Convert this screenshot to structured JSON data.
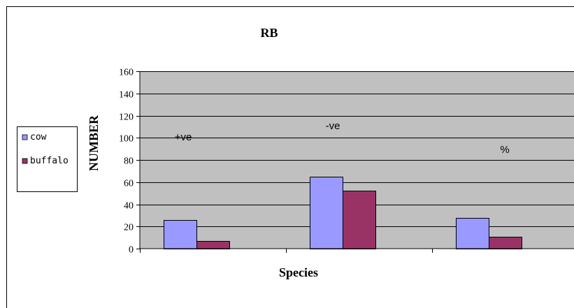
{
  "chart_data": {
    "type": "bar",
    "title": "RB",
    "xlabel": "Species",
    "ylabel": "NUMBER",
    "ylim": [
      0,
      160
    ],
    "yticks": [
      0,
      20,
      40,
      60,
      80,
      100,
      120,
      140,
      160
    ],
    "grid": true,
    "legend_position": "left",
    "categories": [
      "",
      "",
      ""
    ],
    "series": [
      {
        "name": "cow",
        "color": "#9999ff",
        "values": [
          26,
          65,
          28
        ]
      },
      {
        "name": "buffalo",
        "color": "#993366",
        "values": [
          7,
          52,
          11
        ]
      }
    ],
    "annotations": [
      "+ve",
      "-ve",
      "%"
    ],
    "plot_background": "#c0c0c0"
  }
}
